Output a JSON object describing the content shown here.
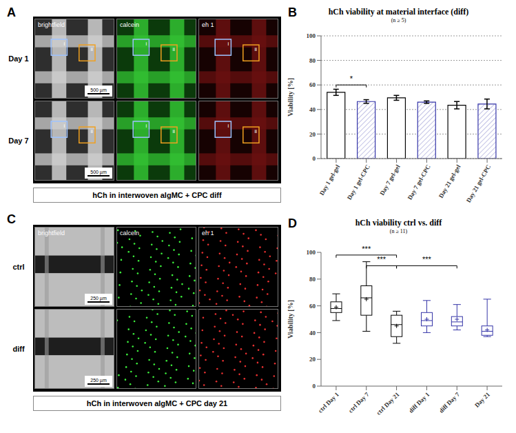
{
  "figure": {
    "panel_letters": [
      "A",
      "B",
      "C",
      "D"
    ],
    "panel_A": {
      "columns": [
        "brightfield",
        "calcein",
        "eh 1"
      ],
      "rows": [
        "Day 1",
        "Day 7"
      ],
      "regions": [
        "i",
        "ii"
      ],
      "scale_bar": "500 µm",
      "caption": "hCh in interwoven algMC + CPC diff"
    },
    "panel_C": {
      "columns": [
        "brightfield",
        "calcein",
        "eh 1"
      ],
      "rows": [
        "ctrl",
        "diff"
      ],
      "scale_bar": "250 µm",
      "caption": "hCh in interwoven algMC + CPC day 21"
    }
  },
  "chart_data": [
    {
      "type": "bar",
      "title": "hCh viability at material interface (diff)",
      "subtitle": "(n ≥ 5)",
      "y_label": "Viability [%]",
      "categories": [
        "Day 1 gel-gel",
        "Day 1 gel-CPC",
        "Day 7 gel-gel",
        "Day 7 gel-CPC",
        "Day 21 gel-gel",
        "Day 21 gel-CPC"
      ],
      "values": [
        54,
        46.5,
        49.5,
        46,
        43.5,
        44.5
      ],
      "errors": [
        2.5,
        1.5,
        2,
        1,
        3,
        4
      ],
      "colors": [
        "#000000",
        "#3535a8",
        "#000000",
        "#3535a8",
        "#000000",
        "#3535a8"
      ],
      "ylim": [
        0,
        100
      ],
      "yticks": [
        0,
        20,
        40,
        60,
        80,
        100
      ],
      "grid": true,
      "annotations": [
        {
          "from": "Day 1 gel-gel",
          "to": "Day 1 gel-CPC",
          "y": 60,
          "text": "*"
        }
      ]
    },
    {
      "type": "box",
      "title": "hCh viability  ctrl vs. diff",
      "subtitle": "(n ≥ 11)",
      "y_label": "Viability [%]",
      "categories": [
        "ctrl Day 1",
        "ctrl Day 7",
        "ctrl Day 21",
        "diff Day 1",
        "diff Day 7",
        "Day 21"
      ],
      "boxes": [
        {
          "min": 49,
          "q1": 55,
          "median": 58,
          "q3": 63,
          "max": 69,
          "mean": 59
        },
        {
          "min": 41,
          "q1": 53,
          "median": 66,
          "q3": 75,
          "max": 93,
          "mean": 65
        },
        {
          "min": 32,
          "q1": 37,
          "median": 46,
          "q3": 53,
          "max": 56,
          "mean": 45
        },
        {
          "min": 40,
          "q1": 45,
          "median": 49,
          "q3": 55,
          "max": 64,
          "mean": 50
        },
        {
          "min": 42,
          "q1": 45,
          "median": 48,
          "q3": 52,
          "max": 61,
          "mean": 50
        },
        {
          "min": 37,
          "q1": 38,
          "median": 41,
          "q3": 45,
          "max": 65,
          "mean": 42
        }
      ],
      "colors": [
        "#000000",
        "#000000",
        "#000000",
        "#3535a8",
        "#3535a8",
        "#3535a8"
      ],
      "ylim": [
        0,
        100
      ],
      "yticks": [
        0,
        20,
        40,
        60,
        80,
        100
      ],
      "grid": false,
      "annotations": [
        {
          "from": "ctrl Day 1",
          "to": "ctrl Day 21",
          "y": 98,
          "text": "***"
        },
        {
          "from": "ctrl Day 7",
          "to": "ctrl Day 21",
          "y": 90,
          "text": "***"
        },
        {
          "from": "ctrl Day 21",
          "to": "diff Day 7",
          "y": 90,
          "text": "***"
        }
      ]
    }
  ]
}
